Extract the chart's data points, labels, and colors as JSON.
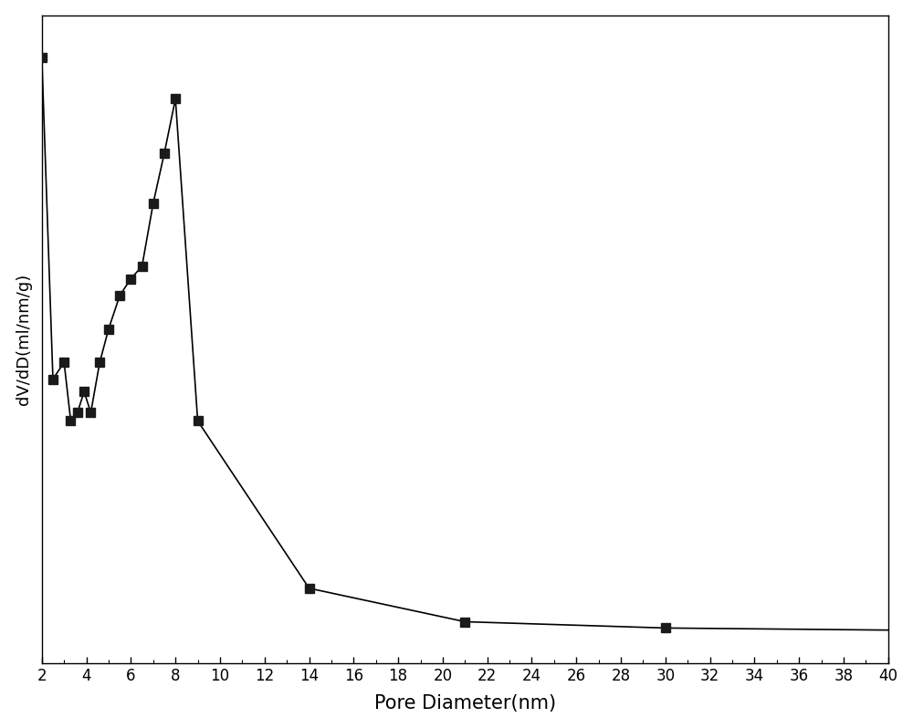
{
  "line_x": [
    2.0,
    2.5,
    3.0,
    3.3,
    3.6,
    3.9,
    4.2,
    4.6,
    5.0,
    5.5,
    6.0,
    6.5,
    7.0,
    7.5,
    8.0,
    9.0,
    14.0,
    21.0,
    30.0,
    40.0
  ],
  "line_y": [
    1.45,
    0.68,
    0.72,
    0.58,
    0.6,
    0.65,
    0.6,
    0.72,
    0.8,
    0.88,
    0.92,
    0.95,
    1.1,
    1.22,
    1.35,
    0.58,
    0.18,
    0.1,
    0.085,
    0.08
  ],
  "marker_x": [
    2.0,
    2.5,
    3.0,
    3.3,
    3.6,
    3.9,
    4.2,
    4.6,
    5.0,
    5.5,
    6.0,
    6.5,
    7.0,
    7.5,
    8.0,
    9.0,
    14.0,
    21.0,
    30.0
  ],
  "marker_y": [
    1.45,
    0.68,
    0.72,
    0.58,
    0.6,
    0.65,
    0.6,
    0.72,
    0.8,
    0.88,
    0.92,
    0.95,
    1.1,
    1.22,
    1.35,
    0.58,
    0.18,
    0.1,
    0.085
  ],
  "xlabel": "Pore Diameter(nm)",
  "ylabel": "dV/dD(ml/nm/g)",
  "line_color": "#000000",
  "marker_color": "#1a1a1a",
  "marker_size": 7,
  "xlim": [
    2,
    40
  ],
  "ylim": [
    0,
    1.55
  ],
  "xticks": [
    2,
    4,
    6,
    8,
    10,
    12,
    14,
    16,
    18,
    20,
    22,
    24,
    26,
    28,
    30,
    32,
    34,
    36,
    38,
    40
  ],
  "background_color": "#ffffff",
  "xlabel_fontsize": 15,
  "ylabel_fontsize": 13,
  "tick_fontsize": 12
}
